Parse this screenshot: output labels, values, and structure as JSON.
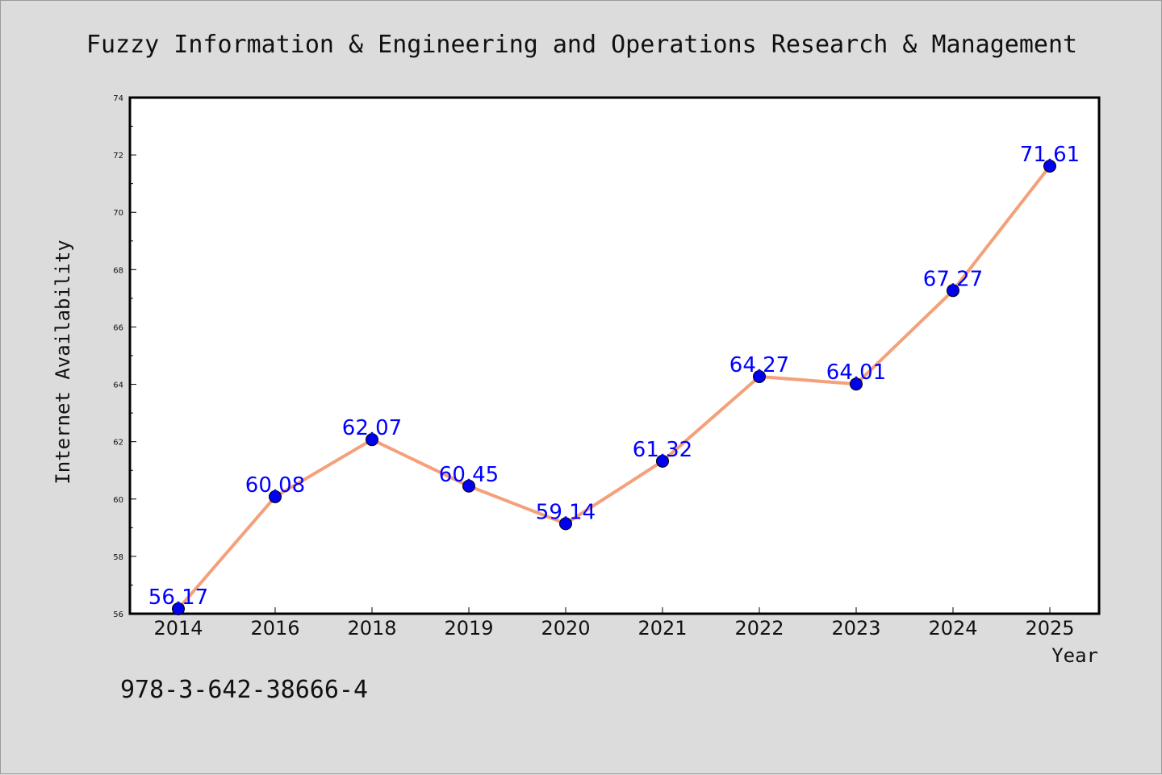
{
  "chart_data": {
    "type": "line",
    "title": "Fuzzy Information & Engineering and Operations Research & Management",
    "xlabel": "Year",
    "ylabel": "Internet Availability",
    "categories": [
      "2014",
      "2016",
      "2018",
      "2019",
      "2020",
      "2021",
      "2022",
      "2023",
      "2024",
      "2025"
    ],
    "series": [
      {
        "values": [
          56.17,
          60.08,
          62.07,
          60.45,
          59.14,
          61.32,
          64.27,
          64.01,
          67.27,
          71.61
        ],
        "data_labels": [
          "56.17",
          "60.08",
          "62.07",
          "60.45",
          "59.14",
          "61.32",
          "64.27",
          "64.01",
          "67.27",
          "71.61"
        ],
        "line_color": "#f4a07a",
        "marker_color": "#0000ee"
      }
    ],
    "ylim": [
      56,
      74
    ],
    "yticks": [
      "56",
      "58",
      "60",
      "62",
      "64",
      "66",
      "68",
      "70",
      "72",
      "74"
    ],
    "grid": false,
    "legend": "none"
  },
  "footnote": "978-3-642-38666-4",
  "colors": {
    "background": "#dcdcdc",
    "plot_background": "#ffffff",
    "label_color": "#0000ff"
  }
}
